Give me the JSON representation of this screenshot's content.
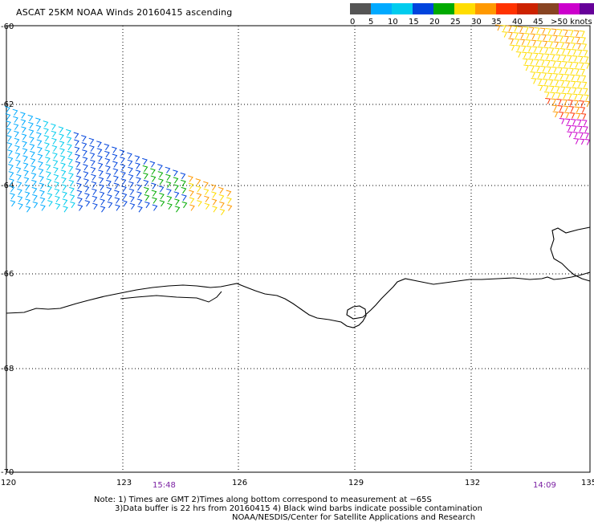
{
  "title": "ASCAT 25KM NOAA Winds 20160415 ascending",
  "legend": {
    "labels": [
      "0",
      "5",
      "10",
      "15",
      "20",
      "25",
      "30",
      "35",
      "40",
      "45",
      ">50 knots"
    ],
    "colors": [
      "#555555",
      "#00aaff",
      "#00ccee",
      "#0044dd",
      "#00aa00",
      "#ffdd00",
      "#ff9900",
      "#ff3300",
      "#cc2200",
      "#884422",
      "#cc00cc",
      "#660099"
    ]
  },
  "axes": {
    "lat_ticks": [
      "-60",
      "-62",
      "-64",
      "-66",
      "-68",
      "-70"
    ],
    "lon_ticks": [
      "120",
      "123",
      "126",
      "129",
      "132",
      "135"
    ]
  },
  "times": [
    "15:48",
    "14:09"
  ],
  "notes": [
    "Note: 1) Times are GMT 2)Times along bottom correspond to measurement at −65S",
    "3)Data buffer is 22 hrs from 20160415 4) Black wind barbs indicate possible contamination",
    "NOAA/NESDIS/Center for Satellite Applications and Research"
  ]
}
